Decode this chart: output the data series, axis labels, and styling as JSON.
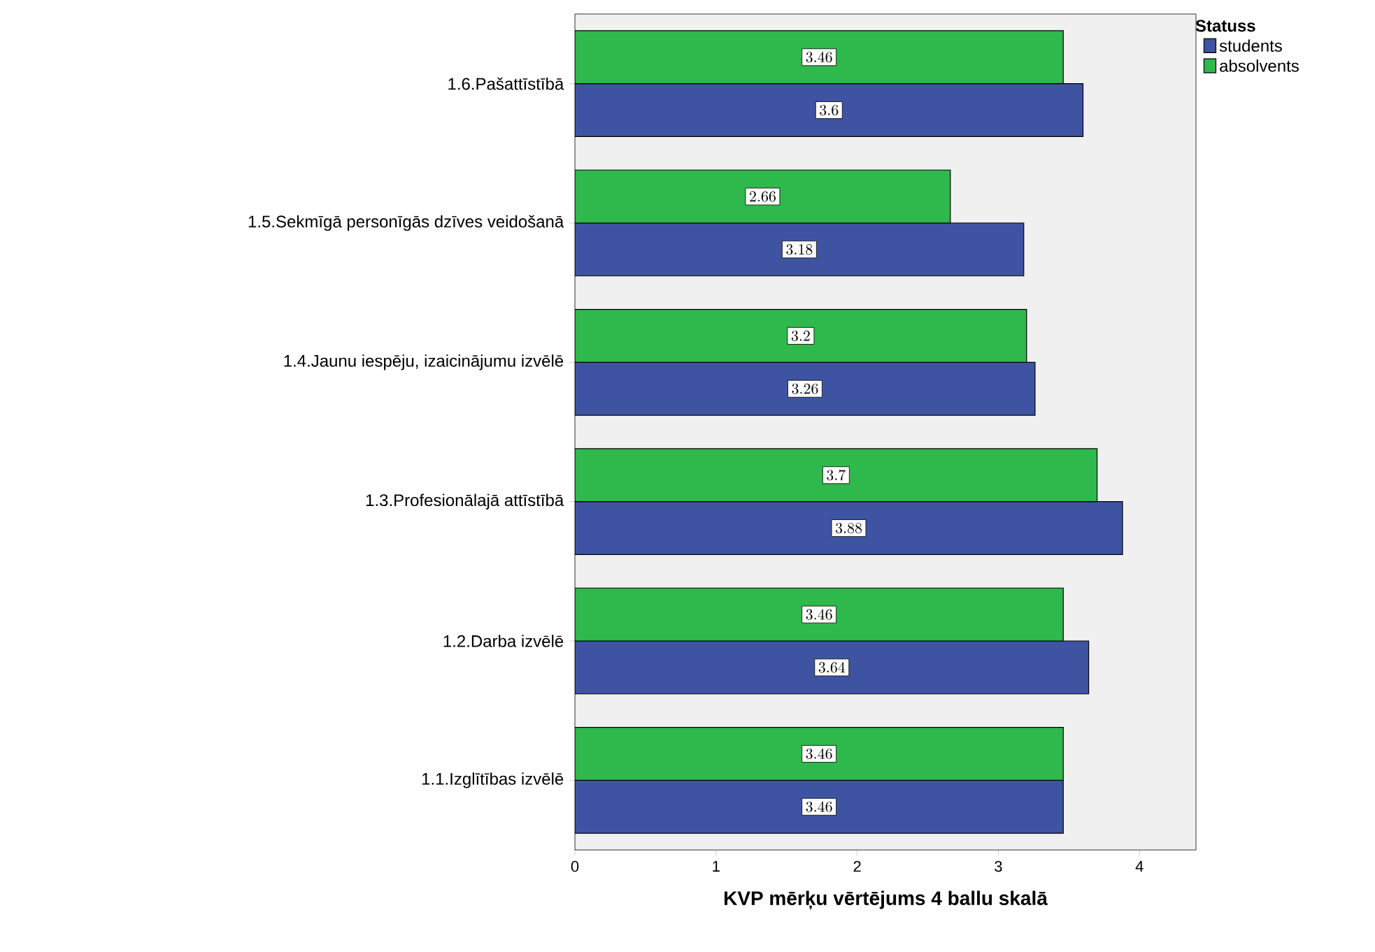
{
  "chart_data": {
    "type": "bar",
    "orientation": "horizontal",
    "categories": [
      "1.6.Pašattīstībā",
      "1.5.Sekmīgā personīgās dzīves veidošanā",
      "1.4.Jaunu iespēju, izaicinājumu izvēlē",
      "1.3.Profesionālajā attīstībā",
      "1.2.Darba izvēlē",
      "1.1.Izglītības izvēlē"
    ],
    "series": [
      {
        "name": "students",
        "color": "#3e54a3",
        "values": [
          3.6,
          3.18,
          3.26,
          3.88,
          3.64,
          3.46
        ]
      },
      {
        "name": "absolvents",
        "color": "#2fb84b",
        "values": [
          3.46,
          2.66,
          3.2,
          3.7,
          3.46,
          3.46
        ]
      }
    ],
    "xlim": [
      0,
      4.4
    ],
    "xticks": [
      0,
      1,
      2,
      3,
      4
    ],
    "xlabel": "KVP mērķu vērtējums 4 ballu skalā",
    "legend_title": "Statuss",
    "legend": "top right",
    "data_labels": true
  }
}
